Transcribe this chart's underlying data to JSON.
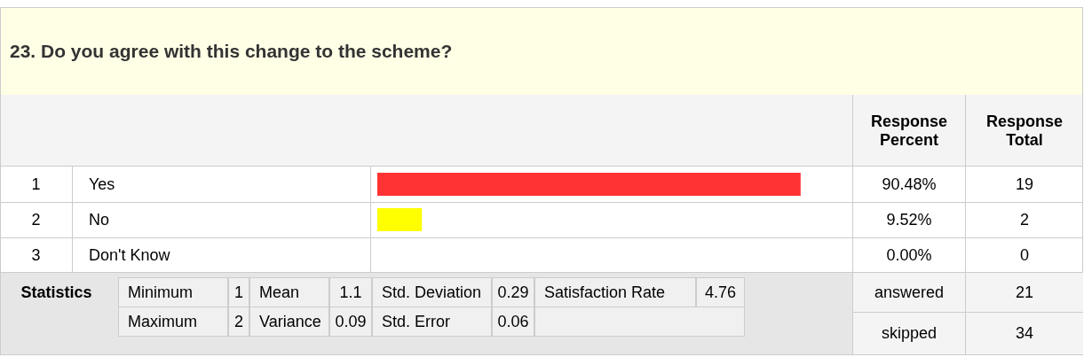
{
  "chart_data": {
    "type": "bar",
    "orientation": "horizontal",
    "title": "23. Do you agree with this change to the scheme?",
    "categories": [
      "Yes",
      "No",
      "Don't Know"
    ],
    "values": [
      90.48,
      9.52,
      0.0
    ],
    "colors": [
      "#ff3333",
      "#ffff00",
      null
    ],
    "value_labels": [
      "90.48%",
      "9.52%",
      "0.00%"
    ],
    "annotations": [
      "Response Percent",
      "Response Total",
      "19",
      "2",
      "0",
      "1",
      "2",
      "3",
      "Statistics",
      "Minimum",
      "1",
      "Mean",
      "1.1",
      "Std. Deviation",
      "0.29",
      "Satisfaction Rate",
      "4.76",
      "Maximum",
      "2",
      "Variance",
      "0.09",
      "Std. Error",
      "0.06",
      "answered",
      "21",
      "skipped",
      "34"
    ]
  }
}
